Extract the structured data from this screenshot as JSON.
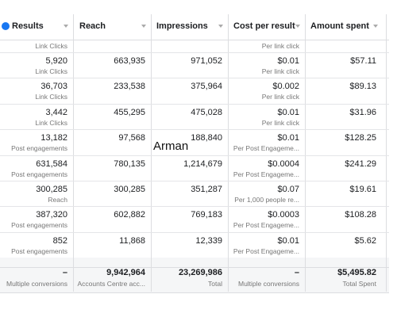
{
  "header": {
    "columns": [
      "Results",
      "Reach",
      "Impressions",
      "Cost per result",
      "Amount spent"
    ]
  },
  "table": {
    "top_partial": {
      "results_sub": "Link Clicks",
      "cost_sub": "Per link click"
    },
    "rows": [
      {
        "results": "5,920",
        "results_sub": "Link Clicks",
        "reach": "663,935",
        "impressions": "971,052",
        "cost": "$0.01",
        "cost_sub": "Per link click",
        "spent": "$57.11"
      },
      {
        "results": "36,703",
        "results_sub": "Link Clicks",
        "reach": "233,538",
        "impressions": "375,964",
        "cost": "$0.002",
        "cost_sub": "Per link click",
        "spent": "$89.13"
      },
      {
        "results": "3,442",
        "results_sub": "Link Clicks",
        "reach": "455,295",
        "impressions": "475,028",
        "cost": "$0.01",
        "cost_sub": "Per link click",
        "spent": "$31.96"
      },
      {
        "results": "13,182",
        "results_sub": "Post engagements",
        "reach": "97,568",
        "impressions": "188,840",
        "cost": "$0.01",
        "cost_sub": "Per Post Engageme...",
        "spent": "$128.25"
      },
      {
        "results": "631,584",
        "results_sub": "Post engagements",
        "reach": "780,135",
        "impressions": "1,214,679",
        "cost": "$0.0004",
        "cost_sub": "Per Post Engageme...",
        "spent": "$241.29"
      },
      {
        "results": "300,285",
        "results_sub": "Reach",
        "reach": "300,285",
        "impressions": "351,287",
        "cost": "$0.07",
        "cost_sub": "Per 1,000 people re...",
        "spent": "$19.61"
      },
      {
        "results": "387,320",
        "results_sub": "Post engagements",
        "reach": "602,882",
        "impressions": "769,183",
        "cost": "$0.0003",
        "cost_sub": "Per Post Engageme...",
        "spent": "$108.28"
      },
      {
        "results": "852",
        "results_sub": "Post engagements",
        "reach": "11,868",
        "impressions": "12,339",
        "cost": "$0.01",
        "cost_sub": "Per Post Engageme...",
        "spent": "$5.62"
      }
    ],
    "totals": {
      "results": "–",
      "results_sub": "Multiple conversions",
      "reach": "9,942,964",
      "reach_sub": "Accounts Centre acc...",
      "impressions": "23,269,986",
      "impressions_sub": "Total",
      "cost": "–",
      "cost_sub": "Multiple conversions",
      "spent": "$5,495.82",
      "spent_sub": "Total Spent"
    }
  },
  "overlay": "Arman"
}
